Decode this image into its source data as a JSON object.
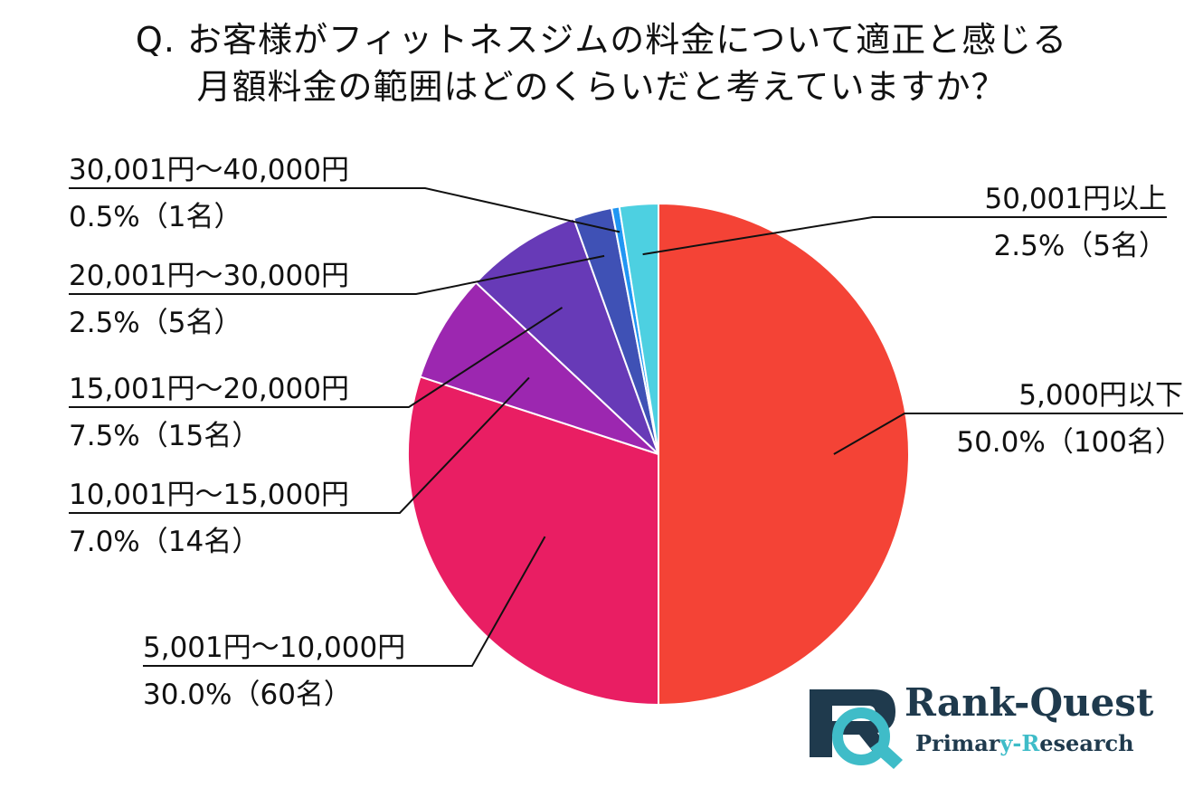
{
  "chart_data": {
    "type": "pie",
    "title_lines": [
      "Q.  お客様がフィットネスジムの料金について適正と感じる",
      "月額料金の範囲はどのくらいだと考えていますか？"
    ],
    "slices": [
      {
        "label": "5,000円以下",
        "value": 50.0,
        "value_text": "50.0%（100名）",
        "color": "#f44336"
      },
      {
        "label": "5,001円～10,000円",
        "value": 30.0,
        "value_text": "30.0%（60名）",
        "color": "#e91e63"
      },
      {
        "label": "10,001円～15,000円",
        "value": 7.0,
        "value_text": "7.0%（14名）",
        "color": "#9c27b0"
      },
      {
        "label": "15,001円～20,000円",
        "value": 7.5,
        "value_text": "7.5%（15名）",
        "color": "#673ab7"
      },
      {
        "label": "20,001円～30,000円",
        "value": 2.5,
        "value_text": "2.5%（5名）",
        "color": "#3f51b5"
      },
      {
        "label": "30,001円～40,000円",
        "value": 0.5,
        "value_text": "0.5%（1名）",
        "color": "#2196f3"
      },
      {
        "label": "50,001円以上",
        "value": 2.5,
        "value_text": "2.5%（5名）",
        "color": "#4dd0e1"
      }
    ]
  },
  "logo": {
    "mark": "RQ",
    "name": "Rank-Quest",
    "sub_part1": "Primar",
    "sub_part2": "y-",
    "sub_part3": "R",
    "sub_part4": "esearch",
    "mark_dark_color": "#1f3a4d",
    "mark_teal_color": "#3fbcc8"
  }
}
